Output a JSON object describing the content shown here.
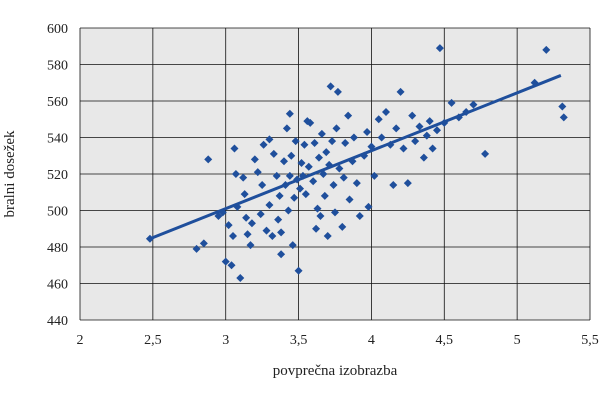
{
  "chart_data": {
    "type": "scatter",
    "xlabel": "povprečna izobrazba",
    "ylabel": "bralni dosežek",
    "xlim": [
      2,
      5.5
    ],
    "ylim": [
      440,
      600
    ],
    "x_ticks": [
      2,
      2.5,
      3,
      3.5,
      4,
      4.5,
      5,
      5.5
    ],
    "y_ticks": [
      440,
      460,
      480,
      500,
      520,
      540,
      560,
      580,
      600
    ],
    "x_tick_labels": [
      "2",
      "2,5",
      "3",
      "3,5",
      "4",
      "4,5",
      "5",
      "5,5"
    ],
    "y_tick_labels": [
      "440",
      "460",
      "480",
      "500",
      "520",
      "540",
      "560",
      "580",
      "600"
    ],
    "grid": true,
    "background": "#e8e8e8",
    "marker_color": "#1f4f9c",
    "line_color": "#1f4f9c",
    "trendline": {
      "x": [
        2.48,
        5.3
      ],
      "y": [
        484.5,
        574
      ]
    },
    "points": [
      {
        "x": 2.48,
        "y": 484.5
      },
      {
        "x": 2.8,
        "y": 479
      },
      {
        "x": 2.85,
        "y": 482
      },
      {
        "x": 2.88,
        "y": 528
      },
      {
        "x": 2.95,
        "y": 497
      },
      {
        "x": 2.98,
        "y": 499
      },
      {
        "x": 3.0,
        "y": 472
      },
      {
        "x": 3.02,
        "y": 492
      },
      {
        "x": 3.04,
        "y": 470
      },
      {
        "x": 3.05,
        "y": 486
      },
      {
        "x": 3.06,
        "y": 534
      },
      {
        "x": 3.07,
        "y": 520
      },
      {
        "x": 3.08,
        "y": 502
      },
      {
        "x": 3.1,
        "y": 463
      },
      {
        "x": 3.12,
        "y": 518
      },
      {
        "x": 3.13,
        "y": 509
      },
      {
        "x": 3.14,
        "y": 496
      },
      {
        "x": 3.15,
        "y": 487
      },
      {
        "x": 3.17,
        "y": 481
      },
      {
        "x": 3.18,
        "y": 493
      },
      {
        "x": 3.2,
        "y": 528
      },
      {
        "x": 3.22,
        "y": 521
      },
      {
        "x": 3.24,
        "y": 498
      },
      {
        "x": 3.25,
        "y": 514
      },
      {
        "x": 3.26,
        "y": 536
      },
      {
        "x": 3.28,
        "y": 489
      },
      {
        "x": 3.3,
        "y": 503
      },
      {
        "x": 3.3,
        "y": 539
      },
      {
        "x": 3.32,
        "y": 486
      },
      {
        "x": 3.33,
        "y": 531
      },
      {
        "x": 3.35,
        "y": 519
      },
      {
        "x": 3.36,
        "y": 495
      },
      {
        "x": 3.37,
        "y": 508
      },
      {
        "x": 3.38,
        "y": 488
      },
      {
        "x": 3.38,
        "y": 476
      },
      {
        "x": 3.4,
        "y": 527
      },
      {
        "x": 3.41,
        "y": 514
      },
      {
        "x": 3.42,
        "y": 545
      },
      {
        "x": 3.43,
        "y": 500
      },
      {
        "x": 3.44,
        "y": 519
      },
      {
        "x": 3.44,
        "y": 553
      },
      {
        "x": 3.45,
        "y": 530
      },
      {
        "x": 3.46,
        "y": 481
      },
      {
        "x": 3.47,
        "y": 507
      },
      {
        "x": 3.48,
        "y": 538
      },
      {
        "x": 3.49,
        "y": 517
      },
      {
        "x": 3.5,
        "y": 467
      },
      {
        "x": 3.51,
        "y": 512
      },
      {
        "x": 3.52,
        "y": 526
      },
      {
        "x": 3.53,
        "y": 519
      },
      {
        "x": 3.54,
        "y": 536
      },
      {
        "x": 3.55,
        "y": 509
      },
      {
        "x": 3.56,
        "y": 549
      },
      {
        "x": 3.57,
        "y": 524
      },
      {
        "x": 3.58,
        "y": 548
      },
      {
        "x": 3.6,
        "y": 516
      },
      {
        "x": 3.61,
        "y": 537
      },
      {
        "x": 3.62,
        "y": 490
      },
      {
        "x": 3.63,
        "y": 501
      },
      {
        "x": 3.64,
        "y": 529
      },
      {
        "x": 3.65,
        "y": 497
      },
      {
        "x": 3.66,
        "y": 542
      },
      {
        "x": 3.67,
        "y": 520
      },
      {
        "x": 3.68,
        "y": 508
      },
      {
        "x": 3.69,
        "y": 532
      },
      {
        "x": 3.7,
        "y": 486
      },
      {
        "x": 3.71,
        "y": 525
      },
      {
        "x": 3.72,
        "y": 568
      },
      {
        "x": 3.73,
        "y": 538
      },
      {
        "x": 3.74,
        "y": 514
      },
      {
        "x": 3.75,
        "y": 499
      },
      {
        "x": 3.76,
        "y": 545
      },
      {
        "x": 3.77,
        "y": 565
      },
      {
        "x": 3.78,
        "y": 523
      },
      {
        "x": 3.8,
        "y": 491
      },
      {
        "x": 3.81,
        "y": 518
      },
      {
        "x": 3.82,
        "y": 537
      },
      {
        "x": 3.84,
        "y": 552
      },
      {
        "x": 3.85,
        "y": 506
      },
      {
        "x": 3.87,
        "y": 527
      },
      {
        "x": 3.88,
        "y": 540
      },
      {
        "x": 3.9,
        "y": 515
      },
      {
        "x": 3.92,
        "y": 497
      },
      {
        "x": 3.95,
        "y": 530
      },
      {
        "x": 3.97,
        "y": 543
      },
      {
        "x": 3.98,
        "y": 502
      },
      {
        "x": 4.0,
        "y": 535
      },
      {
        "x": 4.02,
        "y": 519
      },
      {
        "x": 4.05,
        "y": 550
      },
      {
        "x": 4.07,
        "y": 540
      },
      {
        "x": 4.1,
        "y": 554
      },
      {
        "x": 4.13,
        "y": 536
      },
      {
        "x": 4.15,
        "y": 514
      },
      {
        "x": 4.17,
        "y": 545
      },
      {
        "x": 4.2,
        "y": 565
      },
      {
        "x": 4.22,
        "y": 534
      },
      {
        "x": 4.25,
        "y": 515
      },
      {
        "x": 4.28,
        "y": 552
      },
      {
        "x": 4.3,
        "y": 538
      },
      {
        "x": 4.33,
        "y": 546
      },
      {
        "x": 4.36,
        "y": 529
      },
      {
        "x": 4.38,
        "y": 541
      },
      {
        "x": 4.4,
        "y": 549
      },
      {
        "x": 4.42,
        "y": 534
      },
      {
        "x": 4.45,
        "y": 544
      },
      {
        "x": 4.47,
        "y": 589
      },
      {
        "x": 4.5,
        "y": 548
      },
      {
        "x": 4.55,
        "y": 559
      },
      {
        "x": 4.6,
        "y": 551
      },
      {
        "x": 4.65,
        "y": 554
      },
      {
        "x": 4.7,
        "y": 558
      },
      {
        "x": 4.78,
        "y": 531
      },
      {
        "x": 5.12,
        "y": 570
      },
      {
        "x": 5.2,
        "y": 588
      },
      {
        "x": 5.31,
        "y": 557
      },
      {
        "x": 5.32,
        "y": 551
      }
    ]
  }
}
